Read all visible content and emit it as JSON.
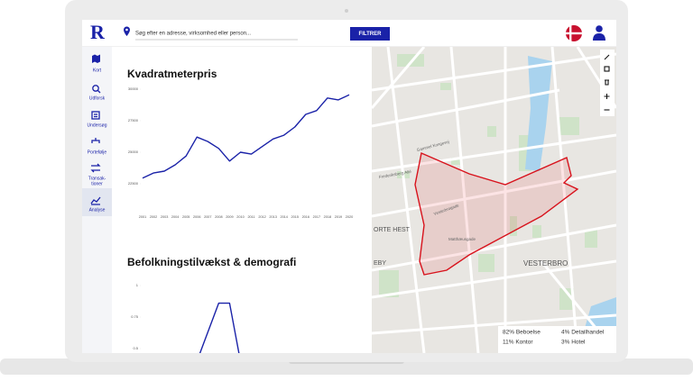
{
  "header": {
    "logo": "R",
    "search_placeholder": "Søg efter en adresse, virksomhed eller person...",
    "filter_button": "FILTRER"
  },
  "sidebar": {
    "items": [
      [
        "Kort"
      ],
      [
        "Udforsk"
      ],
      [
        "Undersøg"
      ],
      [
        "Portefølje"
      ],
      [
        "Transak-",
        "tioner"
      ],
      [
        "Analyse"
      ]
    ]
  },
  "charts": [
    {
      "type": "line",
      "title": "Kvadratmeterpris",
      "color": "#1a22a8",
      "categories": [
        "2001",
        "2002",
        "2003",
        "2004",
        "2005",
        "2006",
        "2007",
        "2008",
        "2009",
        "2010",
        "2011",
        "2012",
        "2013",
        "2014",
        "2015",
        "2016",
        "2017",
        "2018",
        "2019",
        "2020"
      ],
      "values": [
        22950,
        23350,
        23500,
        24000,
        24700,
        26200,
        25850,
        25300,
        24300,
        25000,
        24850,
        25450,
        26050,
        26350,
        27000,
        28000,
        28300,
        29300,
        29150,
        29550
      ],
      "ylim": [
        20000,
        30000
      ],
      "yticks": [
        22500,
        25000,
        27500,
        30000
      ]
    },
    {
      "type": "line",
      "title": "Befolkningstilvækst & demografi",
      "color": "#1a22a8",
      "x": [
        2006,
        2008,
        2009,
        2010
      ],
      "values": [
        0.4,
        0.86,
        0.86,
        0.4
      ],
      "xlim": [
        2001,
        2020
      ],
      "ylim": [
        0.5,
        1
      ],
      "yticks": [
        0.5,
        0.75,
        1
      ]
    }
  ],
  "map": {
    "labels": [
      "VESTERBRO",
      "ORTE HEST",
      "EBY",
      "Vesterbrogade",
      "Matthæusgade",
      "Frederiksberg Allé",
      "Gammel Kongevej"
    ],
    "legend": [
      "82% Beboelse",
      "4% Detailhandel",
      "11% Kontor",
      "3% Hotel"
    ]
  }
}
